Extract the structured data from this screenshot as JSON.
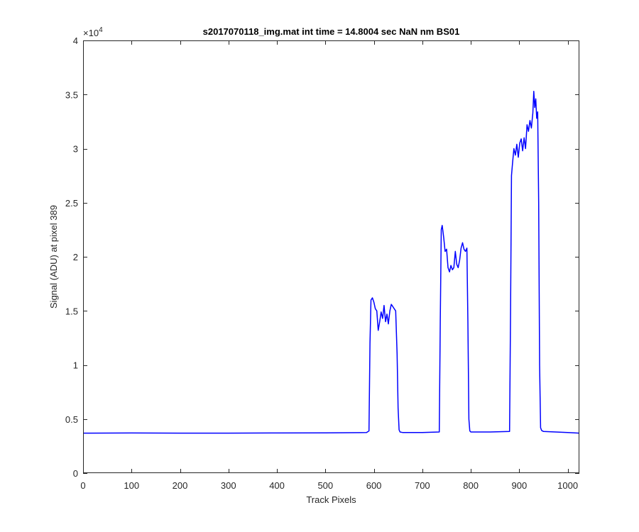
{
  "chart_data": {
    "type": "line",
    "title": "s2017070118_img.mat int time = 14.8004 sec  NaN nm BS01",
    "xlabel": "Track Pixels",
    "ylabel": "Signal (ADU) at pixel 389",
    "xlim": [
      0,
      1024
    ],
    "ylim": [
      0,
      40000
    ],
    "x_ticks": [
      0,
      100,
      200,
      300,
      400,
      500,
      600,
      700,
      800,
      900,
      1000
    ],
    "x_tick_labels": [
      "0",
      "100",
      "200",
      "300",
      "400",
      "500",
      "600",
      "700",
      "800",
      "900",
      "1000"
    ],
    "y_ticks": [
      0,
      5000,
      10000,
      15000,
      20000,
      25000,
      30000,
      35000,
      40000
    ],
    "y_tick_labels": [
      "0",
      "0.5",
      "1",
      "1.5",
      "2",
      "2.5",
      "3",
      "3.5",
      "4"
    ],
    "y_exponent_label": "×10",
    "y_exponent_power": "4",
    "grid": false,
    "series": [
      {
        "color": "#0000ff",
        "x": [
          0,
          100,
          200,
          300,
          400,
          500,
          585,
          590,
          592,
          594,
          597,
          600,
          603,
          606,
          609,
          612,
          615,
          618,
          621,
          624,
          627,
          630,
          633,
          636,
          639,
          642,
          645,
          648,
          650,
          652,
          654,
          660,
          700,
          735,
          737,
          739,
          741,
          744,
          747,
          750,
          753,
          756,
          759,
          762,
          765,
          768,
          771,
          774,
          777,
          780,
          783,
          786,
          789,
          792,
          794,
          796,
          798,
          800,
          840,
          880,
          882,
          884,
          886,
          889,
          892,
          895,
          898,
          901,
          904,
          907,
          910,
          913,
          916,
          919,
          922,
          925,
          928,
          930,
          932,
          934,
          936,
          938,
          940,
          942,
          944,
          946,
          950,
          1000,
          1024
        ],
        "y": [
          3700,
          3710,
          3700,
          3700,
          3710,
          3720,
          3750,
          3900,
          12000,
          16000,
          16200,
          15800,
          15200,
          15000,
          13200,
          14000,
          14900,
          14300,
          15500,
          14000,
          14700,
          13800,
          15000,
          15600,
          15400,
          15200,
          15000,
          11000,
          6000,
          4000,
          3800,
          3750,
          3750,
          3800,
          14000,
          22500,
          22900,
          21800,
          20500,
          20700,
          19000,
          18600,
          19200,
          18800,
          19000,
          20500,
          19300,
          19000,
          19700,
          20800,
          21300,
          20700,
          20500,
          20800,
          14000,
          5000,
          3900,
          3800,
          3800,
          3850,
          15000,
          27500,
          28600,
          30000,
          29400,
          30400,
          29200,
          30500,
          30900,
          29800,
          31000,
          30000,
          32200,
          31600,
          32600,
          31900,
          33300,
          35300,
          33800,
          34600,
          32800,
          33400,
          25000,
          10000,
          4200,
          3950,
          3850,
          3750,
          3700
        ]
      }
    ]
  }
}
